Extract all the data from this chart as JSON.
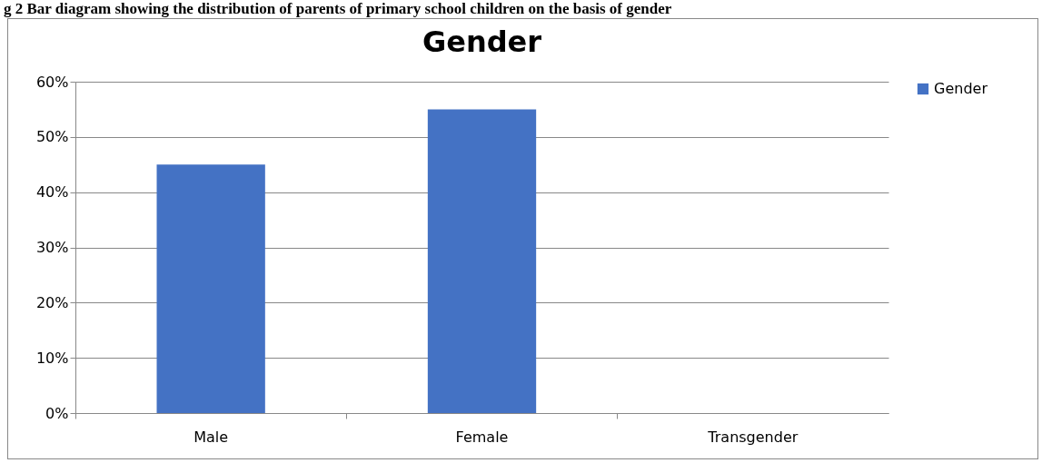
{
  "chart_data": {
    "type": "bar",
    "title": "Gender",
    "annotations": [
      "g 2 Bar diagram showing the distribution of parents of primary school children on the basis of gender"
    ],
    "categories": [
      "Male",
      "Female",
      "Transgender"
    ],
    "series": [
      {
        "name": "Gender",
        "color": "#4472c4",
        "values": [
          45,
          55,
          0
        ]
      }
    ],
    "ylim": [
      0,
      60
    ],
    "yticks": [
      {
        "value": 0,
        "label": "0%"
      },
      {
        "value": 10,
        "label": "10%"
      },
      {
        "value": 20,
        "label": "20%"
      },
      {
        "value": 30,
        "label": "30%"
      },
      {
        "value": 40,
        "label": "40%"
      },
      {
        "value": 50,
        "label": "50%"
      },
      {
        "value": 60,
        "label": "60%"
      }
    ],
    "grid": "y",
    "legend": "right"
  }
}
